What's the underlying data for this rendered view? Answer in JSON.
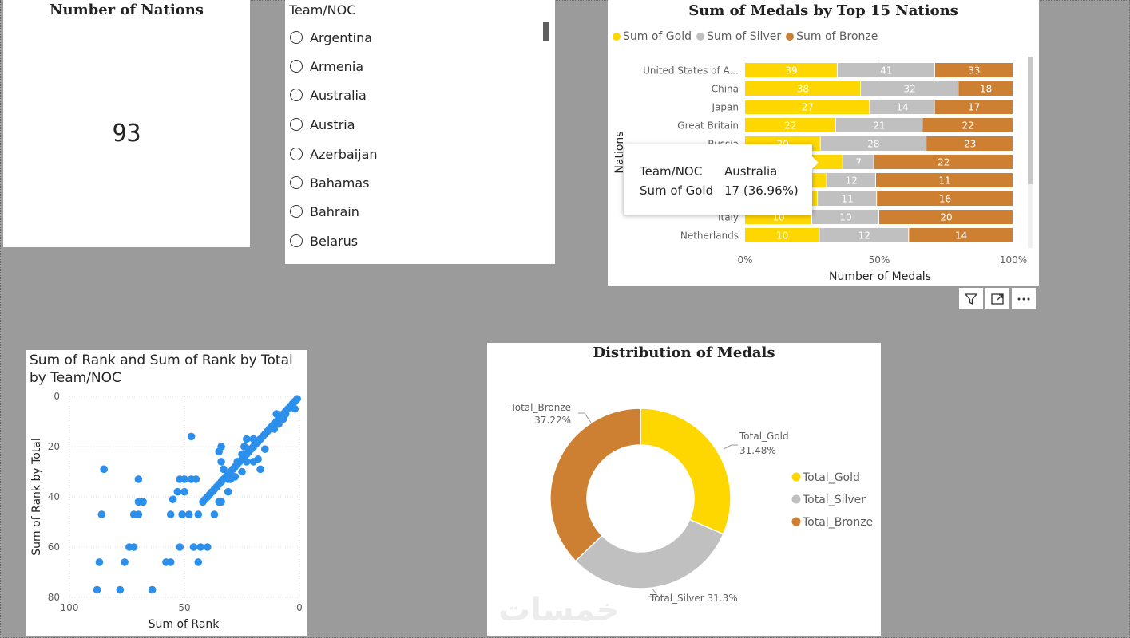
{
  "kpi": {
    "title": "Number of Nations",
    "value": "93"
  },
  "slicer": {
    "title": "Team/NOC",
    "items": [
      "Argentina",
      "Armenia",
      "Australia",
      "Austria",
      "Azerbaijan",
      "Bahamas",
      "Bahrain",
      "Belarus"
    ]
  },
  "bar_chart": {
    "title": "Sum of Medals by Top 15 Nations",
    "legend": [
      "Sum of Gold",
      "Sum of Silver",
      "Sum of Bronze"
    ],
    "y_axis_label": "Nations",
    "x_axis_label": "Number of Medals",
    "tooltip": {
      "key1": "Team/NOC",
      "val1": "Australia",
      "key2": "Sum of Gold",
      "val2": "17 (36.96%)"
    },
    "visual_buttons": [
      "filter-icon",
      "focus-mode-icon",
      "more-options-icon"
    ]
  },
  "scatter": {
    "title": "Sum of Rank and Sum of Rank by Total by Team/NOC"
  },
  "donut": {
    "title": "Distribution of Medals",
    "legend": [
      "Total_Gold",
      "Total_Silver",
      "Total_Bronze"
    ],
    "watermark": "خمسات"
  },
  "colors": {
    "gold": "#FFD700",
    "silver": "#C0C0C0",
    "bronze": "#CD7F32",
    "scatter": "#2B8FEB"
  },
  "chart_data": [
    {
      "type": "bar",
      "stacked": "100%",
      "title": "Sum of Medals by Top 15 Nations",
      "categories": [
        "United States of A...",
        "China",
        "Japan",
        "Great Britain",
        "Russia",
        "",
        "",
        "",
        "Italy",
        "Netherlands"
      ],
      "series": [
        {
          "name": "Sum of Gold",
          "values": [
            39,
            38,
            27,
            22,
            20,
            null,
            null,
            null,
            10,
            10
          ],
          "labels": [
            "39",
            "38",
            "27",
            "22",
            "20",
            "",
            "",
            "",
            "10",
            "10"
          ]
        },
        {
          "name": "Sum of Silver",
          "values": [
            41,
            32,
            14,
            21,
            28,
            7,
            12,
            11,
            10,
            12
          ],
          "labels": [
            "41",
            "32",
            "14",
            "21",
            "28",
            "7",
            "12",
            "11",
            "10",
            "12"
          ]
        },
        {
          "name": "Sum of Bronze",
          "values": [
            33,
            18,
            17,
            22,
            23,
            22,
            11,
            16,
            20,
            14
          ],
          "labels": [
            "33",
            "18",
            "17",
            "22",
            "23",
            "22",
            "11",
            "16",
            "20",
            "14"
          ]
        }
      ],
      "row_ends": [
        0.3451,
        0.4318,
        0.4655,
        0.3385,
        0.2817,
        0.3651,
        0.3052,
        0.2712,
        0.25,
        0.2778
      ],
      "row_mid": [
        0.708,
        0.7955,
        0.7069,
        0.6615,
        0.6761,
        0.481,
        0.488,
        0.4915,
        0.5,
        0.6111
      ],
      "xlabel": "Number of Medals",
      "ylabel": "Nations",
      "xticks": [
        "0%",
        "50%",
        "100%"
      ]
    },
    {
      "type": "scatter",
      "title": "Sum of Rank and Sum of Rank by Total by Team/NOC",
      "xlabel": "Sum of Rank",
      "ylabel": "Sum of Rank by Total",
      "xlim": [
        100,
        0
      ],
      "ylim": [
        0,
        80
      ],
      "xticks": [
        "100",
        "50",
        "0"
      ],
      "yticks": [
        "0",
        "20",
        "40",
        "60",
        "80"
      ],
      "points": [
        [
          1,
          1
        ],
        [
          2,
          2
        ],
        [
          3,
          3
        ],
        [
          4,
          4
        ],
        [
          2,
          5
        ],
        [
          5,
          5
        ],
        [
          6,
          6
        ],
        [
          7,
          7
        ],
        [
          8,
          8
        ],
        [
          9,
          9
        ],
        [
          10,
          10
        ],
        [
          11,
          11
        ],
        [
          12,
          12
        ],
        [
          13,
          13
        ],
        [
          14,
          14
        ],
        [
          15,
          15
        ],
        [
          16,
          16
        ],
        [
          17,
          17
        ],
        [
          18,
          18
        ],
        [
          19,
          19
        ],
        [
          20,
          20
        ],
        [
          21,
          21
        ],
        [
          22,
          22
        ],
        [
          23,
          23
        ],
        [
          24,
          24
        ],
        [
          25,
          25
        ],
        [
          26,
          26
        ],
        [
          27,
          27
        ],
        [
          28,
          28
        ],
        [
          29,
          29
        ],
        [
          30,
          30
        ],
        [
          31,
          31
        ],
        [
          32,
          32
        ],
        [
          33,
          33
        ],
        [
          34,
          34
        ],
        [
          35,
          35
        ],
        [
          36,
          36
        ],
        [
          37,
          37
        ],
        [
          38,
          38
        ],
        [
          39,
          39
        ],
        [
          40,
          40
        ],
        [
          41,
          41
        ],
        [
          42,
          42
        ],
        [
          11,
          13
        ],
        [
          13,
          13
        ],
        [
          9,
          11
        ],
        [
          7,
          9
        ],
        [
          6,
          7
        ],
        [
          10,
          7
        ],
        [
          15,
          21
        ],
        [
          20,
          17
        ],
        [
          23,
          17
        ],
        [
          24,
          20
        ],
        [
          25,
          23
        ],
        [
          20,
          26
        ],
        [
          23,
          26
        ],
        [
          18,
          25
        ],
        [
          17,
          29
        ],
        [
          22,
          21
        ],
        [
          27,
          26
        ],
        [
          25,
          30
        ],
        [
          28,
          32
        ],
        [
          31,
          38
        ],
        [
          34,
          42
        ],
        [
          35,
          42
        ],
        [
          44,
          47
        ],
        [
          48,
          47
        ],
        [
          37,
          47
        ],
        [
          30,
          33
        ],
        [
          31,
          33
        ],
        [
          33,
          29
        ],
        [
          34,
          26
        ],
        [
          34,
          20
        ],
        [
          35,
          22
        ],
        [
          45,
          33
        ],
        [
          47,
          33
        ],
        [
          50,
          33
        ],
        [
          52,
          33
        ],
        [
          47,
          16
        ],
        [
          50,
          38
        ],
        [
          51,
          47
        ],
        [
          56,
          47
        ],
        [
          55,
          41
        ],
        [
          53,
          38
        ],
        [
          46,
          60
        ],
        [
          52,
          60
        ],
        [
          56,
          66
        ],
        [
          58,
          66
        ],
        [
          43,
          60
        ],
        [
          40,
          60
        ],
        [
          44,
          66
        ],
        [
          64,
          77
        ],
        [
          70,
          47
        ],
        [
          72,
          47
        ],
        [
          68,
          42
        ],
        [
          70,
          42
        ],
        [
          70,
          33
        ],
        [
          72,
          60
        ],
        [
          74,
          60
        ],
        [
          76,
          66
        ],
        [
          78,
          77
        ],
        [
          86,
          47
        ],
        [
          85,
          29
        ],
        [
          87,
          66
        ],
        [
          88,
          77
        ]
      ]
    },
    {
      "type": "pie",
      "donut": true,
      "title": "Distribution of Medals",
      "slices": [
        {
          "label": "Total_Gold",
          "value": 31.48,
          "text": "Total_Gold",
          "pct": "31.48%"
        },
        {
          "label": "Total_Silver",
          "value": 31.3,
          "text": "Total_Silver",
          "pct": "31.3%"
        },
        {
          "label": "Total_Bronze",
          "value": 37.22,
          "text": "Total_Bronze",
          "pct": "37.22%"
        }
      ]
    }
  ]
}
